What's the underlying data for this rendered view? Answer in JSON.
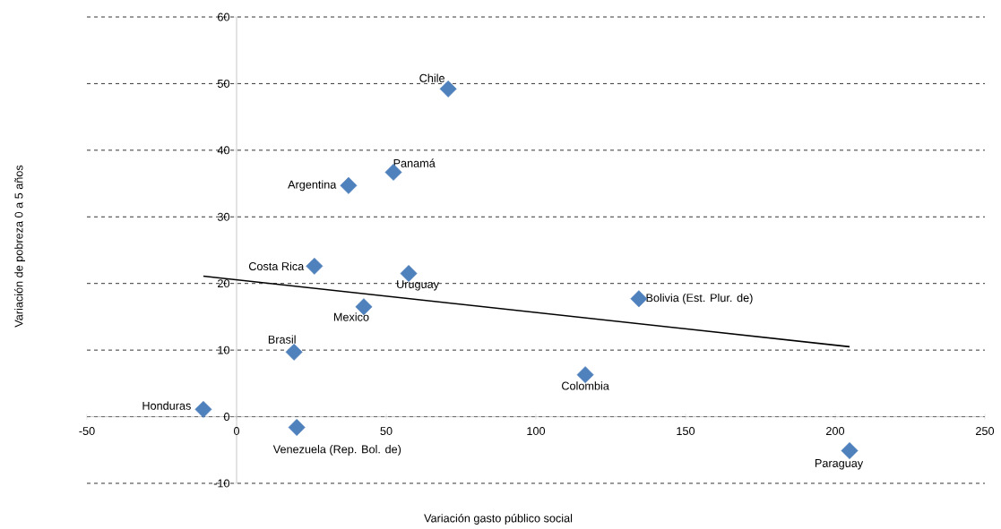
{
  "chart_data": {
    "type": "scatter",
    "xlabel": "Variación gasto público social",
    "ylabel": "Variación de pobreza 0 a 5 años",
    "xlim": [
      -50,
      250
    ],
    "xticks": [
      -50,
      0,
      50,
      100,
      150,
      200,
      250
    ],
    "ylim": [
      -10,
      60
    ],
    "yticks": [
      -10,
      0,
      10,
      20,
      30,
      40,
      50,
      60
    ],
    "grid": "y",
    "marker": "diamond",
    "series": [
      {
        "color": "#4f81bd",
        "x": [
          70.7,
          52.4,
          37.4,
          26.0,
          57.5,
          42.5,
          134.4,
          19.2,
          116.5,
          -11.1,
          20.1,
          204.8
        ],
        "values": [
          49.2,
          36.7,
          34.7,
          22.6,
          21.5,
          16.5,
          17.7,
          9.7,
          6.3,
          1.1,
          -1.6,
          -5.1
        ]
      },
      {
        "type": "line",
        "marker": "none",
        "color": "#000000",
        "x": [
          -11.1,
          204.8
        ],
        "values": [
          21.1,
          10.5
        ]
      }
    ],
    "annotations": [
      {
        "text": "Chile",
        "x": 70.7,
        "y": 49.2
      },
      {
        "text": "Panamá",
        "x": 52.4,
        "y": 36.7
      },
      {
        "text": "Argentina",
        "x": 37.4,
        "y": 34.7
      },
      {
        "text": "Costa Rica",
        "x": 26.0,
        "y": 22.6
      },
      {
        "text": "Uruguay",
        "x": 57.5,
        "y": 21.5
      },
      {
        "text": "Mexico",
        "x": 42.5,
        "y": 16.5
      },
      {
        "text": "Bolivia (Est. Plur. de)",
        "x": 134.4,
        "y": 17.7
      },
      {
        "text": "Brasil",
        "x": 19.2,
        "y": 9.7
      },
      {
        "text": "Colombia",
        "x": 116.5,
        "y": 6.3
      },
      {
        "text": "Honduras",
        "x": -11.1,
        "y": 1.1
      },
      {
        "text": "Venezuela (Rep. Bol. de)",
        "x": 20.1,
        "y": -1.6
      },
      {
        "text": "Paraguay",
        "x": 204.8,
        "y": -5.1
      }
    ]
  }
}
